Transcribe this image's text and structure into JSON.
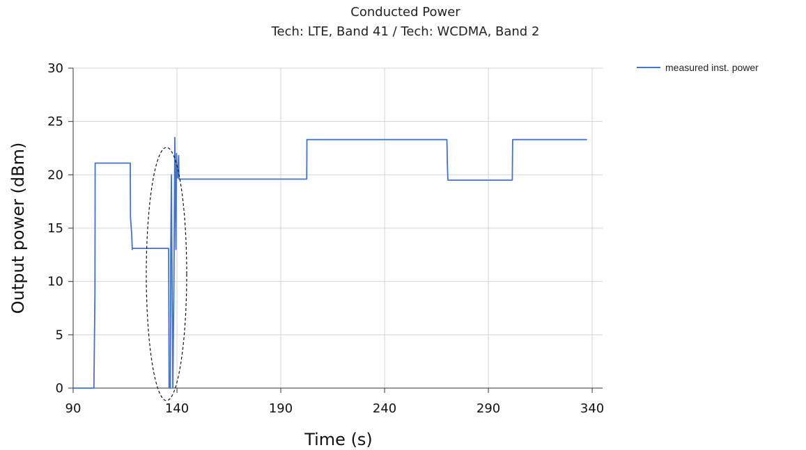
{
  "chart_data": {
    "type": "line",
    "title": "Conducted Power",
    "subtitle": "Tech: LTE, Band 41 / Tech: WCDMA, Band 2",
    "xlabel": "Time (s)",
    "ylabel": "Output power (dBm)",
    "xlim": [
      90,
      345
    ],
    "ylim": [
      0,
      30
    ],
    "xticks": [
      90,
      140,
      190,
      240,
      290,
      340
    ],
    "yticks": [
      0,
      5,
      10,
      15,
      20,
      25,
      30
    ],
    "grid": true,
    "legend_position": "top-right",
    "series": [
      {
        "name": "measured inst. power",
        "color": "#4472C4",
        "x": [
          90,
          100,
          100.5,
          100.6,
          117.5,
          117.6,
          118.2,
          118.5,
          118.6,
          136,
          136.2,
          136.5,
          136.8,
          137,
          137.3,
          138,
          138.5,
          139,
          139.5,
          139.8,
          140,
          140.3,
          140.8,
          141,
          202.5,
          202.6,
          270,
          270.3,
          270.5,
          301.5,
          301.7,
          337.5
        ],
        "y": [
          0,
          0,
          9,
          21.1,
          21.1,
          16,
          14.5,
          13,
          13.1,
          13.1,
          0,
          0,
          0,
          12.5,
          20,
          0,
          8.5,
          23.5,
          13,
          22,
          20,
          19.7,
          21.8,
          19.6,
          19.6,
          23.3,
          23.3,
          20.5,
          19.5,
          19.5,
          23.3,
          23.3
        ]
      }
    ]
  }
}
